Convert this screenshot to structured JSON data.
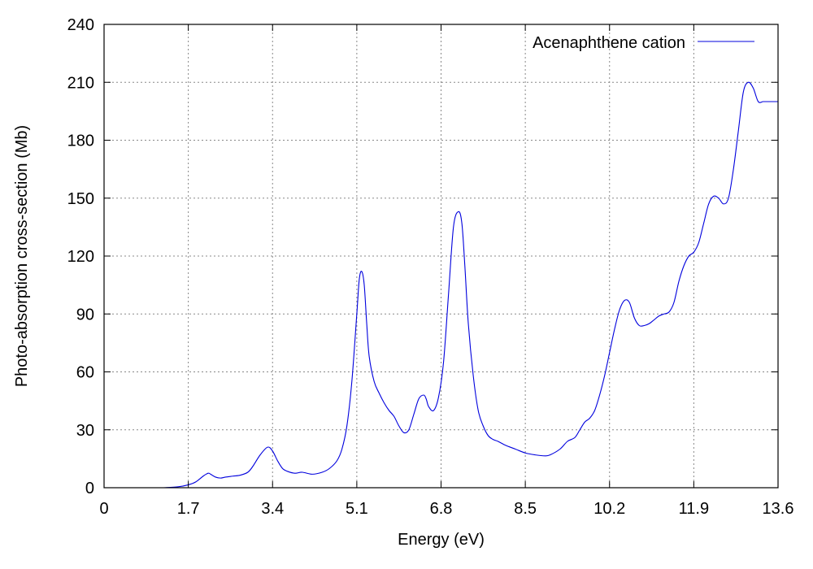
{
  "chart_data": {
    "type": "line",
    "xlabel": "Energy (eV)",
    "ylabel": "Photo-absorption cross-section (Mb)",
    "xlim": [
      0,
      13.6
    ],
    "ylim": [
      0,
      240
    ],
    "x_ticks": [
      "0",
      "1.7",
      "3.4",
      "5.1",
      "6.8",
      "8.5",
      "10.2",
      "11.9",
      "13.6"
    ],
    "y_ticks": [
      "0",
      "30",
      "60",
      "90",
      "120",
      "150",
      "180",
      "210",
      "240"
    ],
    "grid": true,
    "legend_position": "top-right",
    "series": [
      {
        "name": "Acenaphthene cation",
        "color": "#0000dd",
        "x": [
          1.2,
          1.5,
          1.7,
          1.85,
          2.0,
          2.1,
          2.15,
          2.25,
          2.35,
          2.45,
          2.6,
          2.75,
          2.9,
          3.0,
          3.15,
          3.3,
          3.4,
          3.5,
          3.6,
          3.7,
          3.85,
          4.0,
          4.2,
          4.4,
          4.55,
          4.7,
          4.8,
          4.9,
          5.0,
          5.1,
          5.15,
          5.2,
          5.25,
          5.3,
          5.35,
          5.45,
          5.55,
          5.65,
          5.75,
          5.85,
          5.95,
          6.05,
          6.15,
          6.25,
          6.35,
          6.45,
          6.5,
          6.55,
          6.65,
          6.75,
          6.85,
          6.95,
          7.05,
          7.15,
          7.22,
          7.28,
          7.35,
          7.45,
          7.55,
          7.65,
          7.75,
          7.85,
          7.95,
          8.1,
          8.3,
          8.5,
          8.7,
          8.9,
          9.0,
          9.2,
          9.35,
          9.5,
          9.6,
          9.7,
          9.8,
          9.9,
          10.0,
          10.1,
          10.2,
          10.3,
          10.4,
          10.5,
          10.6,
          10.7,
          10.8,
          10.9,
          11.0,
          11.1,
          11.2,
          11.3,
          11.4,
          11.5,
          11.6,
          11.7,
          11.8,
          11.9,
          12.0,
          12.1,
          12.2,
          12.3,
          12.4,
          12.5,
          12.6,
          12.7,
          12.8,
          12.9,
          13.0,
          13.1,
          13.2,
          13.3,
          13.4,
          13.5,
          13.6
        ],
        "y": [
          0,
          0.5,
          1.5,
          3,
          6,
          7.5,
          7,
          5.5,
          5,
          5.5,
          6,
          6.5,
          8,
          11,
          17,
          21,
          19,
          14,
          10,
          8.5,
          7.5,
          8,
          7,
          8,
          10,
          14,
          20,
          32,
          55,
          90,
          108,
          112,
          105,
          85,
          68,
          55,
          49,
          44,
          40,
          37,
          32,
          28.5,
          30,
          38,
          46,
          48,
          46,
          42,
          40,
          47,
          65,
          100,
          135,
          143,
          137,
          115,
          85,
          58,
          40,
          32,
          27,
          25,
          24,
          22,
          20,
          18,
          17,
          16.5,
          17,
          20,
          24,
          26,
          30,
          34,
          36,
          40,
          48,
          58,
          70,
          82,
          92,
          97,
          96,
          88,
          84,
          84,
          85,
          87,
          89,
          90,
          91,
          96,
          107,
          115,
          120,
          122,
          127,
          137,
          147,
          151,
          150,
          147,
          150,
          165,
          185,
          205,
          210,
          207,
          200,
          200,
          200,
          200,
          200
        ],
        "x_draw_max": 13.6
      }
    ]
  }
}
